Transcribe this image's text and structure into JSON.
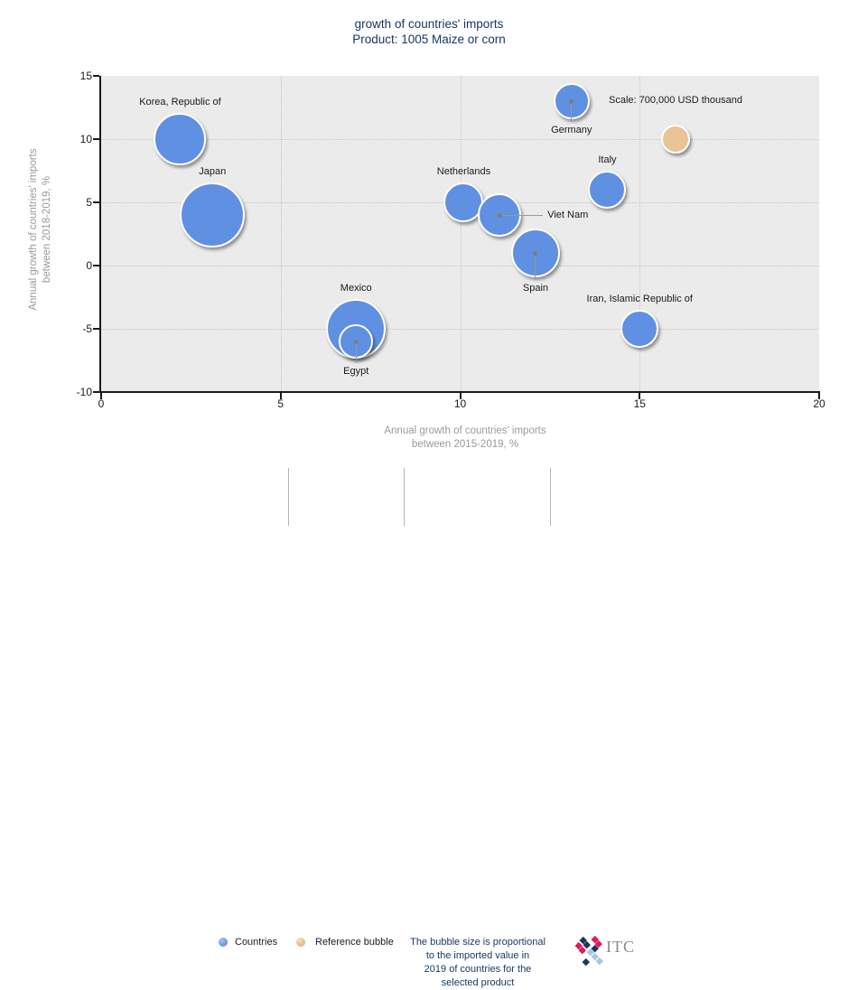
{
  "title": {
    "line1": "growth of countries' imports",
    "line2": "Product: 1005 Maize or corn"
  },
  "chart_data": {
    "type": "scatter",
    "subtype": "bubble",
    "x_axis": {
      "label_line1": "Annual growth of countries' imports",
      "label_line2": "between 2015-2019, %",
      "min": 0,
      "max": 20,
      "ticks": [
        0,
        5,
        10,
        15,
        20
      ],
      "gridlines": [
        5,
        10,
        15
      ]
    },
    "y_axis": {
      "label_line1": "Annual growth of countries' imports",
      "label_line2": "between 2018-2019, %",
      "min": -10,
      "max": 15,
      "ticks": [
        15,
        10,
        5,
        0,
        -5,
        -10
      ],
      "gridlines": [
        10,
        5,
        0,
        -5
      ]
    },
    "bubbles": [
      {
        "name": "Korea, Republic of",
        "x": 2.2,
        "y": 10,
        "r": 29,
        "label_placement": "above"
      },
      {
        "name": "Japan",
        "x": 3.1,
        "y": 4,
        "r": 36,
        "label_placement": "above"
      },
      {
        "name": "Netherlands",
        "x": 10.1,
        "y": 5,
        "r": 22,
        "label_placement": "above"
      },
      {
        "name": "Viet Nam",
        "x": 11.1,
        "y": 4,
        "r": 24,
        "label_placement": "right",
        "line_len": 48
      },
      {
        "name": "Spain",
        "x": 12.1,
        "y": 1,
        "r": 27,
        "label_placement": "below",
        "line_len": 30
      },
      {
        "name": "Italy",
        "x": 14.1,
        "y": 6,
        "r": 21,
        "label_placement": "above"
      },
      {
        "name": "Germany",
        "x": 13.1,
        "y": 13,
        "r": 20,
        "label_placement": "below",
        "line_len": 23
      },
      {
        "name": "Mexico",
        "x": 7.1,
        "y": -5,
        "r": 33,
        "label_placement": "above"
      },
      {
        "name": "Egypt",
        "x": 7.1,
        "y": -6,
        "r": 19,
        "label_placement": "below",
        "line_len": 24
      },
      {
        "name": "Iran, Islamic Republic of",
        "x": 15,
        "y": -5,
        "r": 21,
        "label_placement": "above"
      }
    ],
    "reference_bubble": {
      "label": "Scale: 700,000 USD thousand",
      "x": 16,
      "y": 10,
      "r": 16
    },
    "bubble_size_meaning": "The bubble size is proportional to the imported value in 2019 of countries for the selected product"
  },
  "legend": {
    "countries_label": "Countries",
    "reference_label": "Reference bubble",
    "note_lines": [
      "The bubble size is proportional",
      "to the imported value in",
      "2019 of countries for the",
      "selected product"
    ],
    "logo_text": "ITC"
  },
  "colors": {
    "bubble_blue": "#6090e2",
    "reference_tan": "#e9c495",
    "title_navy": "#17365d",
    "note_navy": "#17375e",
    "plot_background": "#ebebeb",
    "logo_navy": "#1c355e",
    "logo_pink": "#e01a5a",
    "logo_lightblue": "#a9c7e2"
  }
}
